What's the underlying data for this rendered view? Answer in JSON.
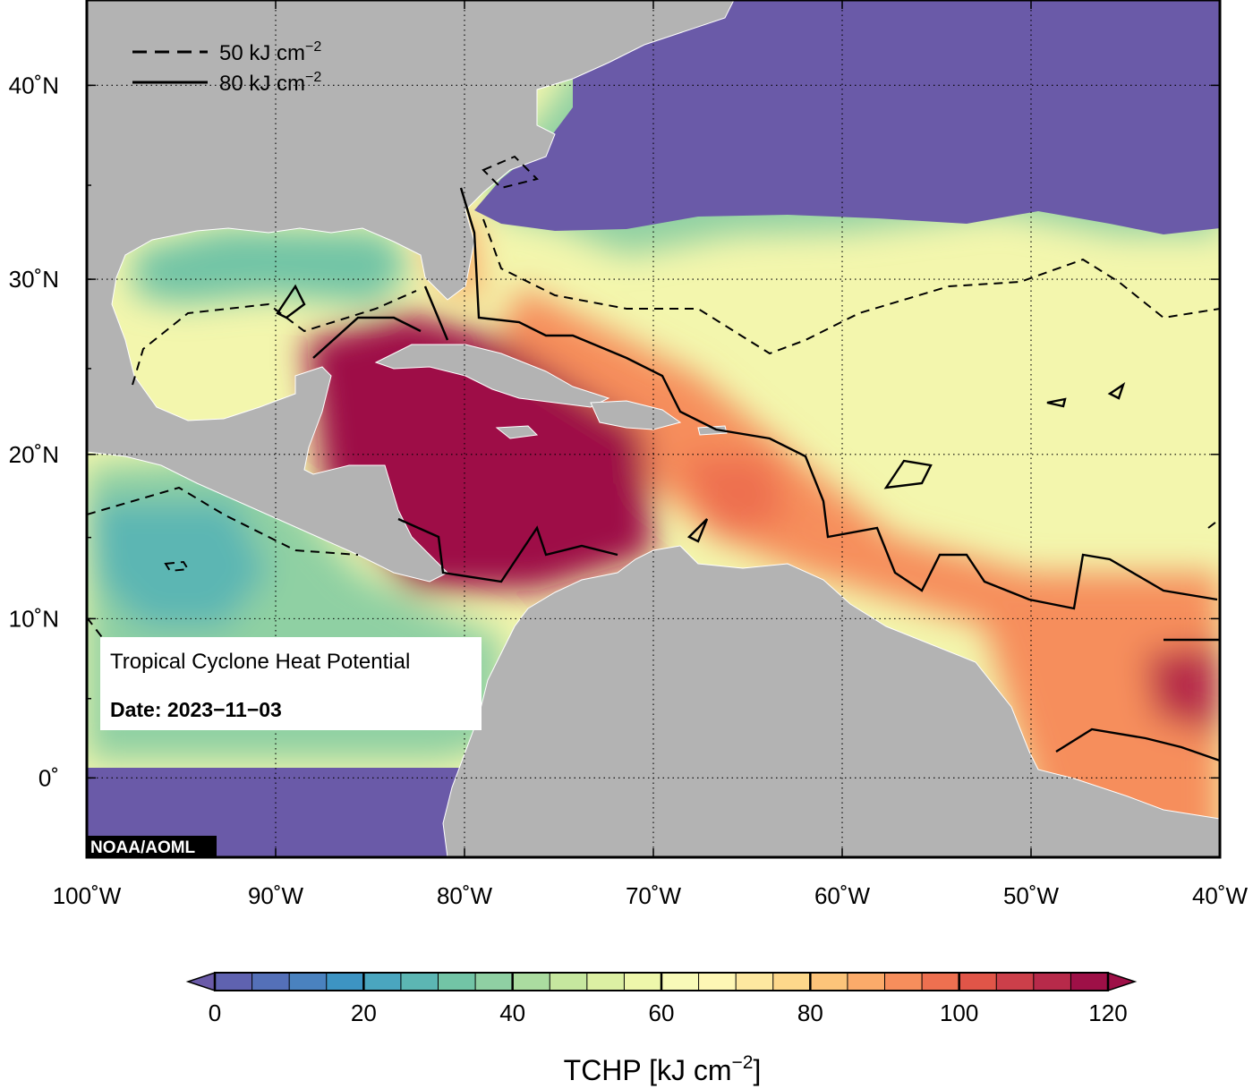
{
  "map": {
    "lon_range": [
      -100,
      -40
    ],
    "lat_range": [
      -5,
      44
    ],
    "gridlines": "dotted",
    "land_color": "#b3b3b3",
    "lon_ticks": [
      {
        "lon": -100,
        "label": "100˚W"
      },
      {
        "lon": -90,
        "label": "90˚W"
      },
      {
        "lon": -80,
        "label": "80˚W"
      },
      {
        "lon": -70,
        "label": "70˚W"
      },
      {
        "lon": -60,
        "label": "60˚W"
      },
      {
        "lon": -50,
        "label": "50˚W"
      },
      {
        "lon": -40,
        "label": "40˚W"
      }
    ],
    "lat_ticks": [
      {
        "lat": 40,
        "label": "40˚N"
      },
      {
        "lat": 30,
        "label": "30˚N"
      },
      {
        "lat": 20,
        "label": "20˚N"
      },
      {
        "lat": 10,
        "label": "10˚N"
      },
      {
        "lat": 0,
        "label": "0˚"
      }
    ]
  },
  "legend": {
    "dashed_label": "50 kJ cm",
    "solid_label": "80 kJ cm",
    "exponent": "−2"
  },
  "info_box": {
    "title": "Tropical Cyclone Heat Potential",
    "date_label": "Date: 2023−11−03"
  },
  "credit": "NOAA/AOML",
  "colorbar": {
    "min": 0,
    "max": 120,
    "step": 5,
    "ticks": [
      {
        "value": 0,
        "label": "0"
      },
      {
        "value": 20,
        "label": "20"
      },
      {
        "value": 40,
        "label": "40"
      },
      {
        "value": 60,
        "label": "60"
      },
      {
        "value": 80,
        "label": "80"
      },
      {
        "value": 100,
        "label": "100"
      },
      {
        "value": 120,
        "label": "120"
      }
    ],
    "colors": [
      "#6a5aa8",
      "#5f62b0",
      "#5470b8",
      "#4a82bf",
      "#3d94c3",
      "#4aa6bf",
      "#5cb6b3",
      "#72c4a6",
      "#8fd0a3",
      "#abdca0",
      "#c6e79f",
      "#dcf0a3",
      "#eef7ab",
      "#f8fab8",
      "#fef7b5",
      "#fde8a0",
      "#fdd88b",
      "#fcc47a",
      "#fbab6a",
      "#f68e5c",
      "#ee7050",
      "#e05548",
      "#cc3f4a",
      "#b72a4a",
      "#9e1047"
    ],
    "label_main": "TCHP [kJ cm",
    "label_exp": "−2",
    "label_close": "]"
  }
}
